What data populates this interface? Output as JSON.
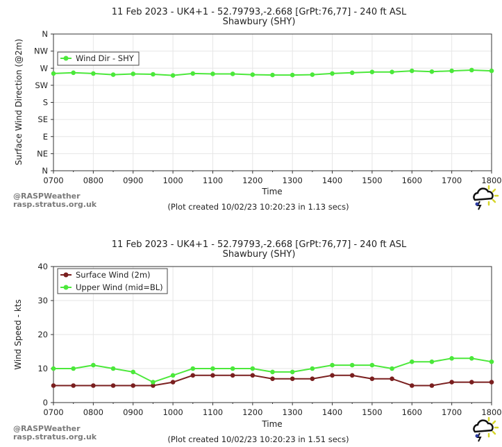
{
  "colors": {
    "grid": "#e6e6e6",
    "axis": "#333333",
    "wind_dir": "#4be83a",
    "surface_wind": "#7a1f1f",
    "upper_wind": "#4be83a"
  },
  "watermark": {
    "line1": "@RASPWeather",
    "line2": "rasp.stratus.org.uk"
  },
  "chart_data": [
    {
      "type": "line",
      "title": "11 Feb 2023 - UK4+1 - 52.79793,-2.668 [GrPt:76,77]  - 240 ft ASL",
      "subtitle": "Shawbury (SHY)",
      "xlabel": "Time",
      "ylabel": "Surface Wind Direction (@2m)",
      "categories": [
        "0700",
        "0730",
        "0800",
        "0830",
        "0900",
        "0930",
        "1000",
        "1030",
        "1100",
        "1130",
        "1200",
        "1230",
        "1300",
        "1330",
        "1400",
        "1430",
        "1500",
        "1530",
        "1600",
        "1630",
        "1700",
        "1730",
        "1800"
      ],
      "xtick_labels": [
        "0700",
        "0800",
        "0900",
        "1000",
        "1100",
        "1200",
        "1300",
        "1400",
        "1500",
        "1600",
        "1700",
        "1800"
      ],
      "yticks": [
        "N",
        "NE",
        "E",
        "SE",
        "S",
        "SW",
        "W",
        "NW",
        "N"
      ],
      "ylim": [
        0,
        360
      ],
      "series": [
        {
          "name": "Wind Dir - SHY",
          "color": "#4be83a",
          "values": [
            256,
            258,
            256,
            253,
            255,
            254,
            251,
            256,
            255,
            255,
            253,
            252,
            252,
            253,
            256,
            258,
            260,
            260,
            263,
            261,
            263,
            265,
            263
          ]
        }
      ],
      "legend": "top-left",
      "footer": "(Plot created 10/02/23 10:20:23 in 1.13 secs)"
    },
    {
      "type": "line",
      "title": "11 Feb 2023 - UK4+1 - 52.79793,-2.668 [GrPt:76,77]  - 240 ft ASL",
      "subtitle": "Shawbury (SHY)",
      "xlabel": "Time",
      "ylabel": "Wind Speed - kts",
      "categories": [
        "0700",
        "0730",
        "0800",
        "0830",
        "0900",
        "0930",
        "1000",
        "1030",
        "1100",
        "1130",
        "1200",
        "1230",
        "1300",
        "1330",
        "1400",
        "1430",
        "1500",
        "1530",
        "1600",
        "1630",
        "1700",
        "1730",
        "1800"
      ],
      "xtick_labels": [
        "0700",
        "0800",
        "0900",
        "1000",
        "1100",
        "1200",
        "1300",
        "1400",
        "1500",
        "1600",
        "1700",
        "1800"
      ],
      "yticks": [
        "0",
        "10",
        "20",
        "30",
        "40"
      ],
      "ylim": [
        0,
        40
      ],
      "series": [
        {
          "name": "Surface Wind (2m)",
          "color": "#7a1f1f",
          "values": [
            5,
            5,
            5,
            5,
            5,
            5,
            6,
            8,
            8,
            8,
            8,
            7,
            7,
            7,
            8,
            8,
            7,
            7,
            5,
            5,
            6,
            6,
            6
          ]
        },
        {
          "name": "Upper Wind (mid=BL)",
          "color": "#4be83a",
          "values": [
            10,
            10,
            11,
            10,
            9,
            6,
            8,
            10,
            10,
            10,
            10,
            9,
            9,
            10,
            11,
            11,
            11,
            10,
            12,
            12,
            13,
            13,
            12
          ]
        }
      ],
      "legend": "top-left",
      "footer": "(Plot created 10/02/23 10:20:23 in 1.51 secs)"
    }
  ]
}
